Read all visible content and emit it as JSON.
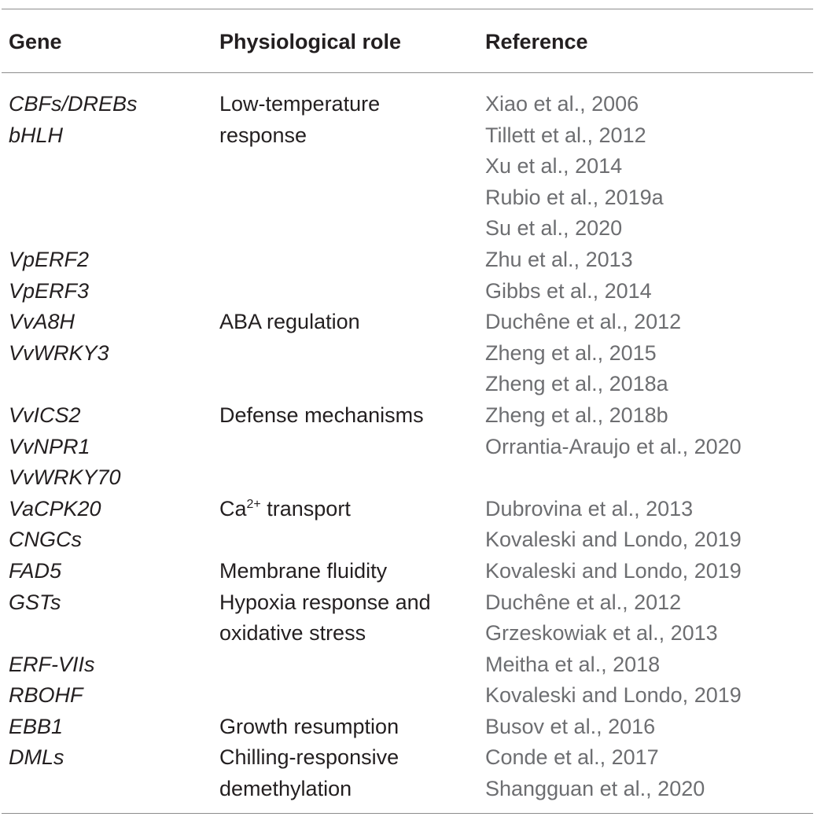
{
  "table": {
    "headers": {
      "gene": "Gene",
      "role": "Physiological role",
      "reference": "Reference"
    },
    "gene_lines": [
      "CBFs/DREBs",
      "bHLH",
      "",
      "",
      "",
      "VpERF2",
      "VpERF3",
      "VvA8H",
      "VvWRKY3",
      "",
      "VvICS2",
      "VvNPR1",
      "VvWRKY70",
      "VaCPK20",
      "CNGCs",
      "FAD5",
      "GSTs",
      "",
      "ERF-VIIs",
      "RBOHF",
      "EBB1",
      "DMLs",
      ""
    ],
    "role_lines": [
      "Low-temperature",
      "response",
      "",
      "",
      "",
      "",
      "",
      "ABA regulation",
      "",
      "",
      "Defense mechanisms",
      "",
      "",
      "",
      "",
      "Membrane fluidity",
      "Hypoxia response and",
      "oxidative stress",
      "",
      "",
      "Growth resumption",
      "Chilling-responsive",
      "demethylation"
    ],
    "ca_transport": {
      "prefix": "Ca",
      "superscript": "2+",
      "suffix": " transport"
    },
    "reference_lines": [
      "Xiao et al., 2006",
      "Tillett et al., 2012",
      "Xu et al., 2014",
      "Rubio et al., 2019a",
      "Su et al., 2020",
      "Zhu et al., 2013",
      "Gibbs et al., 2014",
      "Duchêne et al., 2012",
      "Zheng et al., 2015",
      "Zheng et al., 2018a",
      "Zheng et al., 2018b",
      "Orrantia-Araujo et al., 2020",
      "",
      "Dubrovina et al., 2013",
      "Kovaleski and Londo, 2019",
      "Kovaleski and Londo, 2019",
      "Duchêne et al., 2012",
      "Grzeskowiak et al., 2013",
      "Meitha et al., 2018",
      "Kovaleski and Londo, 2019",
      "Busov et al., 2016",
      "Conde et al., 2017",
      "Shangguan et al., 2020"
    ]
  },
  "colors": {
    "text": "#231f20",
    "reference_text": "#6d6e71",
    "rule": "#8c8c8c"
  }
}
